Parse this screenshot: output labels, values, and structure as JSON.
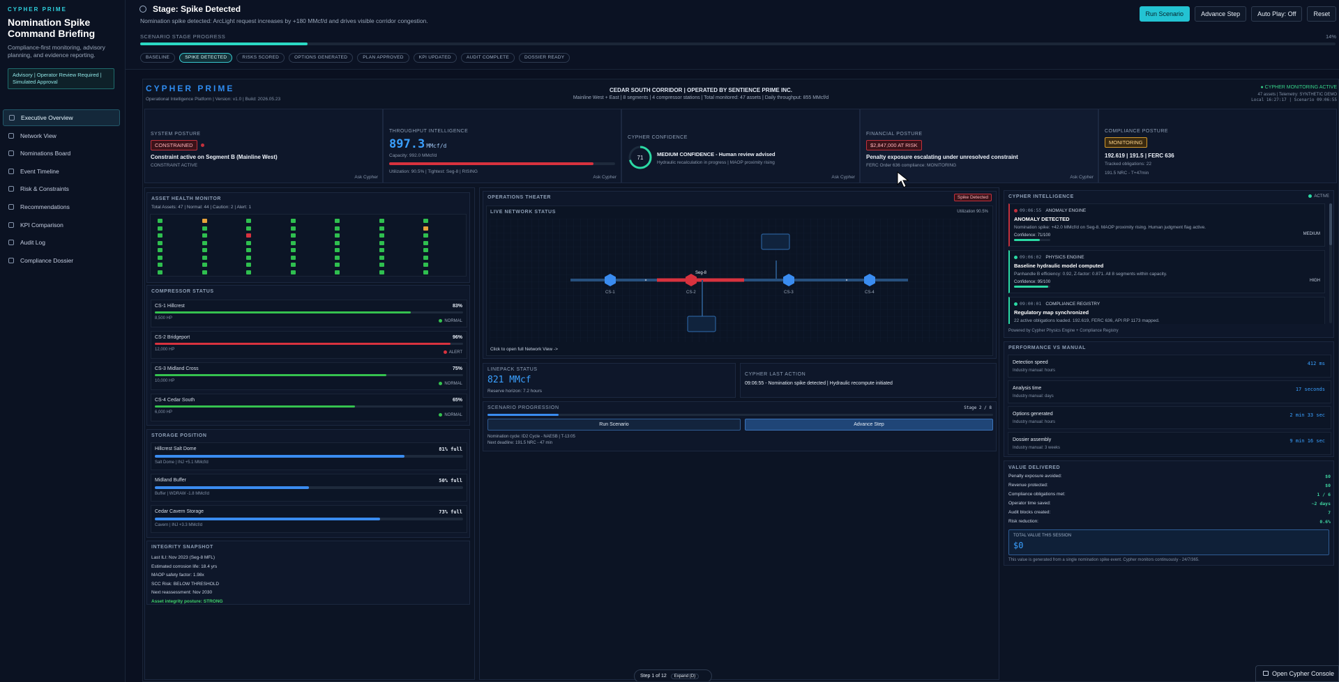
{
  "sidebar": {
    "kicker": "CYPHER PRIME",
    "title": "Nomination Spike Command Briefing",
    "description": "Compliance-first monitoring, advisory planning, and evidence reporting.",
    "badge": "Advisory | Operator Review Required | Simulated Approval",
    "items": [
      {
        "label": "Executive Overview",
        "active": true
      },
      {
        "label": "Network View"
      },
      {
        "label": "Nominations Board"
      },
      {
        "label": "Event Timeline"
      },
      {
        "label": "Risk & Constraints"
      },
      {
        "label": "Recommendations"
      },
      {
        "label": "KPI Comparison"
      },
      {
        "label": "Audit Log"
      },
      {
        "label": "Compliance Dossier"
      }
    ]
  },
  "topbar": {
    "stage_title": "Stage: Spike Detected",
    "stage_sub": "Nomination spike detected: ArcLight request increases by +180 MMcf/d and drives visible corridor congestion.",
    "progress_label": "SCENARIO STAGE PROGRESS",
    "progress_pct": "14%",
    "progress_value": 0.14,
    "stages": [
      "BASELINE",
      "SPIKE DETECTED",
      "RISKS SCORED",
      "OPTIONS GENERATED",
      "PLAN APPROVED",
      "KPI UPDATED",
      "AUDIT COMPLETE",
      "DOSSIER READY"
    ],
    "active_stage": 1,
    "buttons": {
      "run": "Run Scenario",
      "advance": "Advance Step",
      "autoplay": "Auto Play: Off",
      "reset": "Reset"
    }
  },
  "header": {
    "logo": "CYPHER PRIME",
    "version": "Operational Intelligence Platform | Version: v1.0 | Build: 2026.05.23",
    "corridor": "CEDAR SOUTH CORRIDOR | OPERATED BY SENTIENCE PRIME INC.",
    "corridor_sub": "Mainline West + East | 8 segments | 4 compressor stations | Total monitored: 47 assets | Daily throughput: 855 MMcf/d",
    "monitoring": "● CYPHER MONITORING ACTIVE",
    "meta1": "47 assets | Telemetry: SYNTHETIC DEMO",
    "meta2": "Local 16:27:17 | Scenario 09:06:55"
  },
  "kpis": {
    "posture": {
      "label": "SYSTEM POSTURE",
      "badge": "CONSTRAINED",
      "headline": "Constraint active on Segment B (Mainline West)",
      "sub": "CONSTRAINT ACTIVE",
      "ask": "Ask Cypher"
    },
    "throughput": {
      "label": "THROUGHPUT INTELLIGENCE",
      "value": "897.3",
      "unit": "MMcf/d",
      "capacity": "Capacity: 992.0 MMcf/d",
      "util": "Utilization: 90.5% | Tightest: Seg-8 | RISING",
      "util_value": 0.905,
      "ask": "Ask Cypher"
    },
    "confidence": {
      "label": "CYPHER CONFIDENCE",
      "score": "71",
      "score_value": 71,
      "headline": "MEDIUM CONFIDENCE - Human review advised",
      "sub": "Hydraulic recalculation in progress | MAOP proximity rising",
      "ask": "Ask Cypher"
    },
    "financial": {
      "label": "FINANCIAL POSTURE",
      "badge": "$2,847,000 AT RISK",
      "headline": "Penalty exposure escalating under unresolved constraint",
      "sub": "FERC Order 636 compliance: MONITORING",
      "ask": "Ask Cypher"
    },
    "compliance": {
      "label": "COMPLIANCE POSTURE",
      "badge": "MONITORING",
      "headline": "192.619 | 191.5 | FERC 636",
      "l1": "Tracked obligations: 22",
      "l2": "191.5 NRC - T+47min"
    }
  },
  "asset_health": {
    "title": "ASSET HEALTH MONITOR",
    "summary": "Total Assets: 47 | Normal: 44 | Caution: 2 | Alert: 1"
  },
  "compressors": {
    "title": "COMPRESSOR STATUS",
    "items": [
      {
        "name": "CS-1 Hillcrest",
        "pct": "83%",
        "value": 0.83,
        "hp": "8,500 HP",
        "status": "NORMAL",
        "color": "#35c24f"
      },
      {
        "name": "CS-2 Bridgeport",
        "pct": "96%",
        "value": 0.96,
        "hp": "12,000 HP",
        "status": "ALERT",
        "color": "#d8323e"
      },
      {
        "name": "CS-3 Midland Cross",
        "pct": "75%",
        "value": 0.75,
        "hp": "10,000 HP",
        "status": "NORMAL",
        "color": "#35c24f"
      },
      {
        "name": "CS-4 Cedar South",
        "pct": "65%",
        "value": 0.65,
        "hp": "6,000 HP",
        "status": "NORMAL",
        "color": "#35c24f"
      }
    ]
  },
  "storage": {
    "title": "STORAGE POSITION",
    "items": [
      {
        "name": "Hillcrest Salt Dome",
        "pct": "81% full",
        "value": 0.81,
        "meta": "Salt Dome | INJ +5.1 MMcf/d"
      },
      {
        "name": "Midland Buffer",
        "pct": "50% full",
        "value": 0.5,
        "meta": "Buffer | WDRAW -1.8 MMcf/d"
      },
      {
        "name": "Cedar Cavern Storage",
        "pct": "73% full",
        "value": 0.73,
        "meta": "Cavern | INJ +3.3 MMcf/d"
      }
    ]
  },
  "integrity": {
    "title": "INTEGRITY SNAPSHOT",
    "lines": [
      "Last ILI: Nov 2023 (Seg-8 MFL)",
      "Estimated corrosion life: 18.4 yrs",
      "MAOP safety factor: 1.98x",
      "SCC Risk: BELOW THRESHOLD",
      "Next reassessment: Nov 2030"
    ],
    "posture": "Asset integrity posture: STRONG"
  },
  "theater": {
    "title": "OPERATIONS THEATER",
    "badge": "Spike Detected",
    "live": "LIVE NETWORK STATUS",
    "util": "Utilization 90.5%",
    "seg_label": "Seg-8",
    "stations": [
      "CS-1",
      "CS-2",
      "CS-3",
      "CS-4"
    ],
    "link": "Click to open full Network View ->"
  },
  "linepack": {
    "label": "LINEPACK STATUS",
    "value": "821 MMcf",
    "sub": "Reserve horizon: 7.2 hours"
  },
  "last_action": {
    "label": "CYPHER LAST ACTION",
    "text": "09:06:55 - Nomination spike detected | Hydraulic recompute initiated"
  },
  "progression": {
    "label": "SCENARIO PROGRESSION",
    "stage": "Stage 2 / 8",
    "value": 0.14,
    "run": "Run Scenario",
    "advance": "Advance Step",
    "l1": "Nomination cycle: ID2 Cycle - NAESB | T-13:05",
    "l2": "Next deadline: 191.5 NRC - 47 min"
  },
  "intel": {
    "title": "CYPHER INTELLIGENCE",
    "status": "ACTIVE",
    "items": [
      {
        "time": "09:06:55",
        "engine": "ANOMALY ENGINE",
        "headline": "ANOMALY DETECTED",
        "body": "Nomination spike: +42.0 MMcf/d on Seg-8. MAOP proximity rising. Human judgment flag active.",
        "conf": "Confidence: 71/100",
        "level": "MEDIUM",
        "value": 0.71,
        "color": "#c2303c"
      },
      {
        "time": "09:06:02",
        "engine": "PHYSICS ENGINE",
        "headline": "Baseline hydraulic model computed",
        "body": "Panhandle B efficiency: 0.92, Z-factor: 0.871. All 8 segments within capacity.",
        "conf": "Confidence: 95/100",
        "level": "HIGH",
        "value": 0.95,
        "color": "#2bd9a4"
      },
      {
        "time": "09:00:01",
        "engine": "COMPLIANCE REGISTRY",
        "headline": "Regulatory map synchronized",
        "body": "22 active obligations loaded. 192.619, FERC 636, API RP 1173 mapped.",
        "color": "#2bd9a4"
      }
    ],
    "footer": "Powered by Cypher Physics Engine + Compliance Registry"
  },
  "performance": {
    "title": "PERFORMANCE VS MANUAL",
    "rows": [
      {
        "name": "Detection speed",
        "manual": "Industry manual: hours",
        "value": "412 ms"
      },
      {
        "name": "Analysis time",
        "manual": "Industry manual: days",
        "value": "17 seconds"
      },
      {
        "name": "Options generated",
        "manual": "Industry manual: hours",
        "value": "2 min 33 sec"
      },
      {
        "name": "Dossier assembly",
        "manual": "Industry manual: 3 weeks",
        "value": "9 min 16 sec"
      }
    ]
  },
  "value": {
    "title": "VALUE DELIVERED",
    "rows": [
      {
        "k": "Penalty exposure avoided:",
        "v": "$0"
      },
      {
        "k": "Revenue protected:",
        "v": "$0"
      },
      {
        "k": "Compliance obligations met:",
        "v": "1 / 6"
      },
      {
        "k": "Operator time saved:",
        "v": "~2 days"
      },
      {
        "k": "Audit blocks created:",
        "v": "7"
      },
      {
        "k": "Risk reduction:",
        "v": "0.6%"
      }
    ],
    "total_label": "TOTAL VALUE THIS SESSION",
    "total": "$0",
    "footer": "This value is generated from a single nomination spike event. Cypher monitors continuously - 24/7/365."
  },
  "footer": {
    "step": "Step 1 of 12",
    "expand": "Expand (D)",
    "console": "Open Cypher Console"
  },
  "colors": {
    "accent": "#23c3d3",
    "alert": "#d8323e",
    "normal": "#35c24f",
    "caution": "#e8a23a",
    "link": "#3aa0ff"
  }
}
